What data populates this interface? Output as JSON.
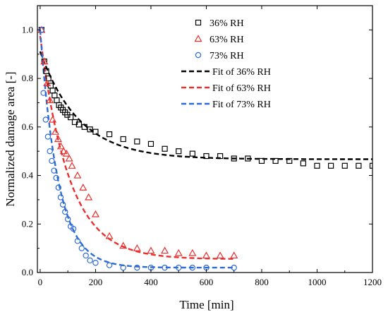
{
  "chart_data": {
    "type": "scatter",
    "xlabel": "Time [min]",
    "ylabel": "Normalized damage area [-]",
    "xlim": [
      -10,
      1200
    ],
    "ylim": [
      0,
      1.1
    ],
    "xticks": [
      0,
      200,
      400,
      600,
      800,
      1000,
      1200
    ],
    "yticks": [
      0.0,
      0.2,
      0.4,
      0.6,
      0.8,
      1.0
    ],
    "ytick_labels": [
      "0.0",
      "0.2",
      "0.4",
      "0.6",
      "0.8",
      "1.0"
    ],
    "legend_position": "top-center",
    "series": [
      {
        "name": "36% RH",
        "marker": "square",
        "color": "#000000",
        "x": [
          5,
          15,
          22,
          30,
          38,
          45,
          52,
          60,
          68,
          75,
          82,
          90,
          98,
          110,
          125,
          140,
          160,
          180,
          200,
          250,
          300,
          350,
          400,
          450,
          500,
          550,
          600,
          650,
          700,
          750,
          800,
          850,
          900,
          950,
          1000,
          1050,
          1100,
          1150,
          1200
        ],
        "y": [
          1.0,
          0.87,
          0.83,
          0.8,
          0.77,
          0.75,
          0.73,
          0.71,
          0.69,
          0.68,
          0.67,
          0.66,
          0.65,
          0.64,
          0.62,
          0.61,
          0.6,
          0.59,
          0.58,
          0.57,
          0.55,
          0.54,
          0.53,
          0.51,
          0.5,
          0.49,
          0.48,
          0.48,
          0.47,
          0.47,
          0.46,
          0.46,
          0.46,
          0.45,
          0.44,
          0.44,
          0.44,
          0.44,
          0.44
        ]
      },
      {
        "name": "63% RH",
        "marker": "triangle",
        "color": "#e8312f",
        "x": [
          5,
          15,
          25,
          35,
          45,
          55,
          65,
          75,
          85,
          95,
          105,
          115,
          135,
          155,
          175,
          200,
          250,
          300,
          350,
          400,
          450,
          500,
          550,
          600,
          650,
          700
        ],
        "y": [
          1.0,
          0.87,
          0.78,
          0.71,
          0.63,
          0.58,
          0.55,
          0.52,
          0.5,
          0.49,
          0.47,
          0.44,
          0.4,
          0.35,
          0.31,
          0.24,
          0.15,
          0.11,
          0.1,
          0.09,
          0.09,
          0.08,
          0.08,
          0.07,
          0.07,
          0.07
        ]
      },
      {
        "name": "73% RH",
        "marker": "circle",
        "color": "#2f6bd4",
        "x": [
          5,
          12,
          20,
          28,
          35,
          42,
          50,
          58,
          66,
          74,
          82,
          90,
          100,
          110,
          120,
          135,
          150,
          165,
          180,
          200,
          250,
          300,
          350,
          400,
          450,
          500,
          550,
          600,
          700
        ],
        "y": [
          1.0,
          0.74,
          0.63,
          0.56,
          0.5,
          0.46,
          0.42,
          0.39,
          0.35,
          0.31,
          0.28,
          0.25,
          0.22,
          0.19,
          0.18,
          0.13,
          0.1,
          0.07,
          0.05,
          0.04,
          0.03,
          0.02,
          0.02,
          0.02,
          0.02,
          0.02,
          0.02,
          0.02,
          0.02
        ]
      },
      {
        "name": "Fit of 36% RH",
        "kind": "fit",
        "color": "#000000",
        "model": "exponential",
        "params": {
          "y0": 0.467,
          "A": 0.444,
          "tau": 140
        },
        "x_range": [
          0,
          1200
        ]
      },
      {
        "name": "Fit of 63% RH",
        "kind": "fit",
        "color": "#e8312f",
        "model": "exponential",
        "params": {
          "y0": 0.055,
          "A": 0.92,
          "tau": 104
        },
        "x_range": [
          0,
          700
        ]
      },
      {
        "name": "Fit of 73% RH",
        "kind": "fit",
        "color": "#2f6bd4",
        "model": "exponential",
        "params": {
          "y0": 0.02,
          "A": 0.98,
          "tau": 65
        },
        "x_range": [
          0,
          700
        ]
      }
    ]
  }
}
